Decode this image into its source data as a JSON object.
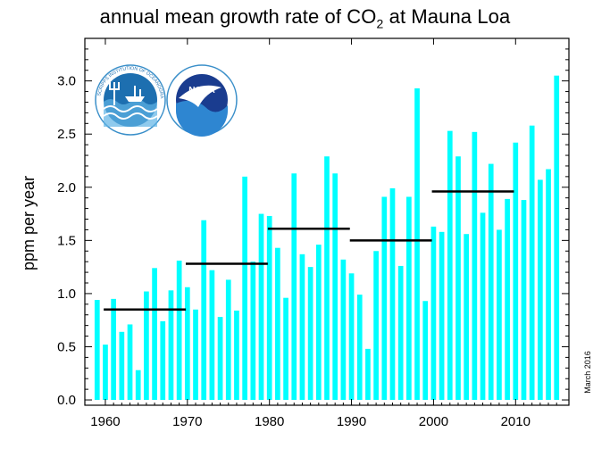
{
  "title_prefix": "annual mean growth rate of CO",
  "title_subscript": "2",
  "title_suffix": " at Mauna Loa",
  "ylabel": "ppm per year",
  "date_stamp": "March 2016",
  "logos": {
    "left": {
      "name": "Scripps Institution of Oceanography UCSD seal",
      "text": "SCRIPPS INSTITUTION OF OCEANOGRAPHY · UCSD"
    },
    "right": {
      "name": "NOAA logo",
      "text": "NOAA"
    }
  },
  "colors": {
    "bar": "#00FFFF",
    "decade_line": "#000000",
    "frame": "#000000"
  },
  "chart_data": {
    "type": "bar",
    "x": [
      1959,
      1960,
      1961,
      1962,
      1963,
      1964,
      1965,
      1966,
      1967,
      1968,
      1969,
      1970,
      1971,
      1972,
      1973,
      1974,
      1975,
      1976,
      1977,
      1978,
      1979,
      1980,
      1981,
      1982,
      1983,
      1984,
      1985,
      1986,
      1987,
      1988,
      1989,
      1990,
      1991,
      1992,
      1993,
      1994,
      1995,
      1996,
      1997,
      1998,
      1999,
      2000,
      2001,
      2002,
      2003,
      2004,
      2005,
      2006,
      2007,
      2008,
      2009,
      2010,
      2011,
      2012,
      2013,
      2014,
      2015
    ],
    "values": [
      0.94,
      0.52,
      0.95,
      0.64,
      0.71,
      0.28,
      1.02,
      1.24,
      0.74,
      1.03,
      1.31,
      1.06,
      0.85,
      1.69,
      1.22,
      0.78,
      1.13,
      0.84,
      2.1,
      1.3,
      1.75,
      1.73,
      1.43,
      0.96,
      2.13,
      1.37,
      1.25,
      1.46,
      2.29,
      2.13,
      1.32,
      1.19,
      0.99,
      0.48,
      1.4,
      1.91,
      1.99,
      1.26,
      1.91,
      2.93,
      0.93,
      1.63,
      1.58,
      2.53,
      2.29,
      1.56,
      2.52,
      1.76,
      2.22,
      1.6,
      1.89,
      2.42,
      1.88,
      2.58,
      2.07,
      2.17,
      3.05
    ],
    "decade_averages": [
      {
        "start": 1960,
        "end": 1970,
        "value": 0.85
      },
      {
        "start": 1970,
        "end": 1980,
        "value": 1.28
      },
      {
        "start": 1980,
        "end": 1990,
        "value": 1.61
      },
      {
        "start": 1990,
        "end": 2000,
        "value": 1.5
      },
      {
        "start": 2000,
        "end": 2010,
        "value": 1.96
      }
    ],
    "xlim": [
      1958,
      2017
    ],
    "ylim": [
      -0.05,
      3.4
    ],
    "xticks": [
      1960,
      1970,
      1980,
      1990,
      2000,
      2010
    ],
    "xtick_labels": [
      "1960",
      "1970",
      "1980",
      "1990",
      "2000",
      "2010"
    ],
    "yticks": [
      0.0,
      0.5,
      1.0,
      1.5,
      2.0,
      2.5,
      3.0
    ],
    "ytick_labels": [
      "0.0",
      "0.5",
      "1.0",
      "1.5",
      "2.0",
      "2.5",
      "3.0"
    ],
    "grid": false,
    "legend": "none"
  }
}
